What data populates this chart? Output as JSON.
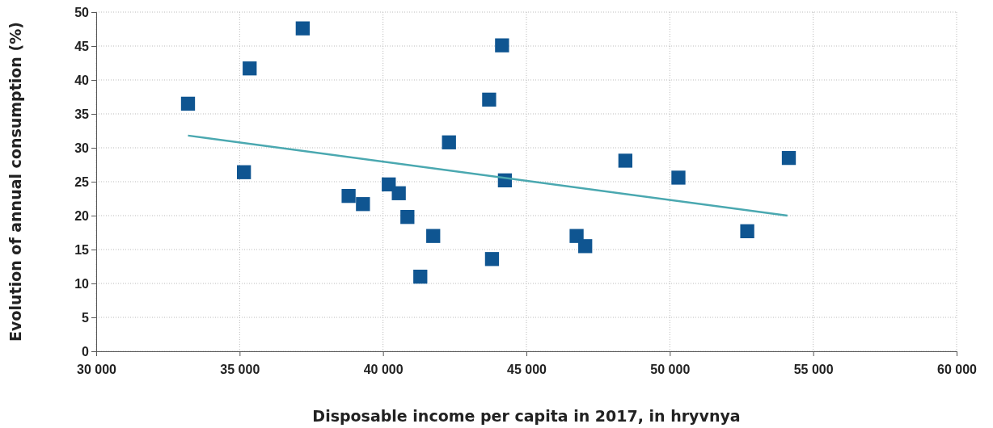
{
  "chart_data": {
    "type": "scatter",
    "xlabel": "Disposable income per capita in 2017, in hryvnya",
    "ylabel": "Evolution of annual consumption (%)",
    "xlim": [
      30000,
      60000
    ],
    "ylim": [
      0,
      50
    ],
    "xticks": [
      {
        "value": 30000,
        "label": "30 000"
      },
      {
        "value": 35000,
        "label": "35 000"
      },
      {
        "value": 40000,
        "label": "40 000"
      },
      {
        "value": 45000,
        "label": "45 000"
      },
      {
        "value": 50000,
        "label": "50 000"
      },
      {
        "value": 55000,
        "label": "55 000"
      },
      {
        "value": 60000,
        "label": "60 000"
      }
    ],
    "yticks": [
      0,
      5,
      10,
      15,
      20,
      25,
      30,
      35,
      40,
      45,
      50
    ],
    "grid": true,
    "marker": "square",
    "series": [
      {
        "color": "#0f5591",
        "x": [
          33200,
          35350,
          37200,
          35150,
          38800,
          39300,
          40200,
          40550,
          40850,
          41300,
          41750,
          42300,
          43700,
          43800,
          44150,
          44250,
          46750,
          47050,
          48450,
          50300,
          52700,
          54150
        ],
        "values": [
          36.5,
          41.7,
          47.6,
          26.4,
          22.9,
          21.7,
          24.6,
          23.3,
          19.8,
          11.0,
          17.0,
          30.8,
          37.1,
          13.6,
          45.1,
          25.2,
          17.0,
          15.5,
          28.1,
          25.6,
          17.7,
          28.5
        ]
      },
      {
        "type": "line",
        "color": "#4aa8b0",
        "marker": "none",
        "line_style": "solid",
        "x": [
          33200,
          54100
        ],
        "values": [
          31.8,
          20.0
        ]
      }
    ]
  }
}
